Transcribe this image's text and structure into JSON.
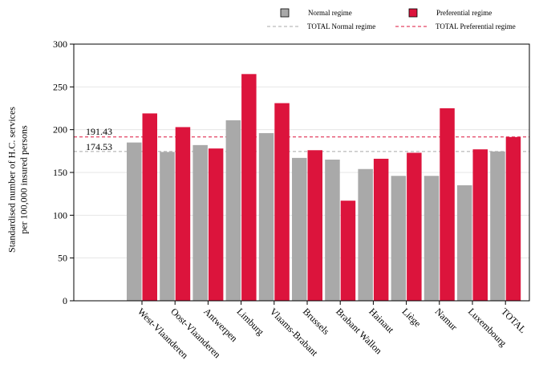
{
  "chart_data": {
    "type": "bar",
    "title": "",
    "xlabel": "",
    "ylabel_lines": [
      "Standardised number of H.C. services",
      "per 100,000 insured persons"
    ],
    "ylim": [
      0,
      300
    ],
    "yticks": [
      0,
      50,
      100,
      150,
      200,
      250,
      300
    ],
    "grid": "horizontal",
    "legend_position": "top-right",
    "categories": [
      "West-Vlaanderen",
      "Oost-Vlaanderen",
      "Antwerpen",
      "Limburg",
      "Vlaams-Brabant",
      "Brussels",
      "Brabant Wallon",
      "Hainaut",
      "Liège",
      "Namur",
      "Luxembourg",
      "TOTAL"
    ],
    "series": [
      {
        "name": "Normal regime",
        "color": "#a9a9a9",
        "values": [
          185,
          174,
          182,
          211,
          196,
          167,
          165,
          154,
          146,
          146,
          135,
          174.53
        ]
      },
      {
        "name": "Preferential regime",
        "color": "#dc143c",
        "values": [
          219,
          203,
          178,
          265,
          231,
          176,
          117,
          166,
          173,
          225,
          177,
          191.43
        ]
      }
    ],
    "reference_lines": [
      {
        "name": "TOTAL Normal regime",
        "value": 174.53,
        "label": "174.53",
        "color": "#a9a9a9"
      },
      {
        "name": "TOTAL Preferential regime",
        "value": 191.43,
        "label": "191.43",
        "color": "#dc143c"
      }
    ]
  }
}
